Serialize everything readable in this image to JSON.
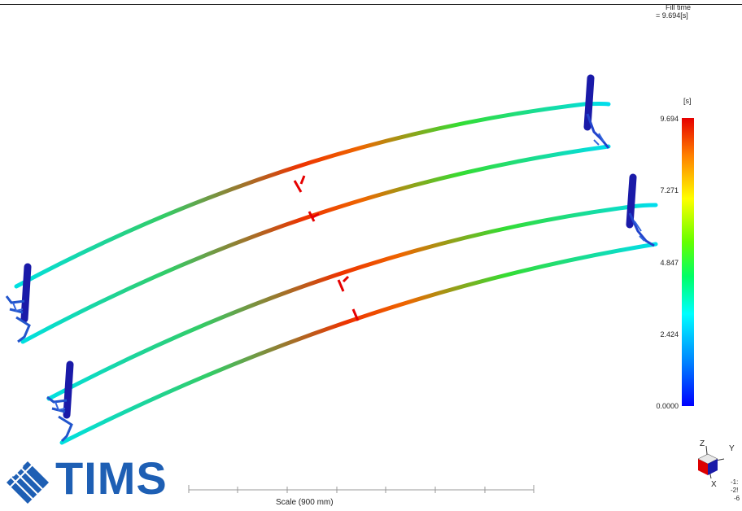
{
  "result": {
    "title": "Fill time",
    "value": "= 9.694[s]"
  },
  "legend": {
    "unit": "[s]",
    "ticks": [
      "9.694",
      "7.271",
      "4.847",
      "2.424",
      "0.0000"
    ],
    "colors": {
      "max": "#e60000",
      "mid_high": "#ff8000",
      "mid": "#66ff00",
      "mid_low": "#00ffff",
      "min": "#0000ff"
    }
  },
  "scale": {
    "label": "Scale (900 mm)"
  },
  "logo": {
    "text": "TIMS",
    "color": "#1e5fb4"
  },
  "triad": {
    "axes": [
      "Z",
      "Y",
      "X"
    ],
    "coords": [
      "-1:",
      "-2!",
      "-6"
    ]
  }
}
